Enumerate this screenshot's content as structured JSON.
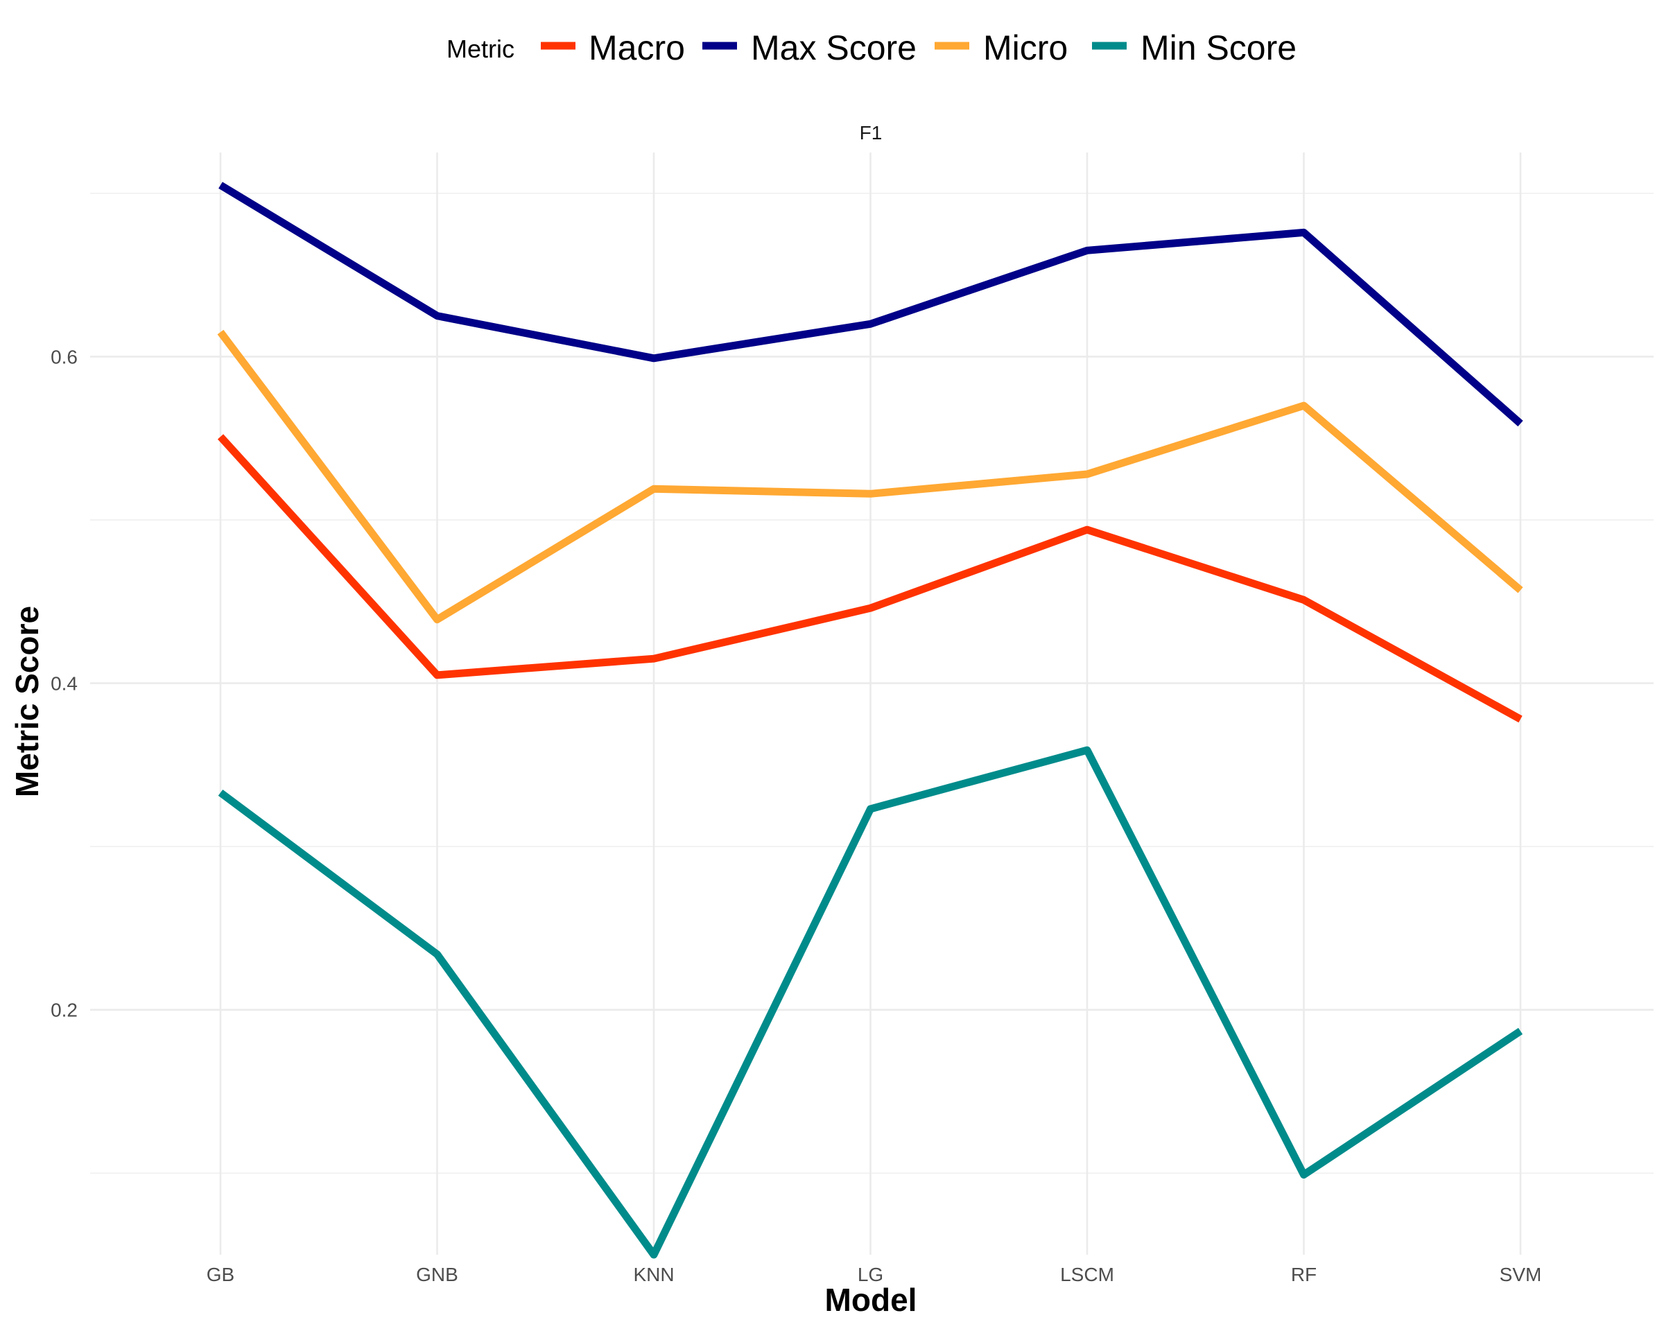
{
  "chart_data": {
    "type": "line",
    "facet": "F1",
    "xlabel": "Model",
    "ylabel": "Metric Score",
    "categories": [
      "GB",
      "GNB",
      "KNN",
      "LG",
      "LSCM",
      "RF",
      "SVM"
    ],
    "ylim": [
      0.05,
      0.725
    ],
    "yticks": [
      0.2,
      0.4,
      0.6
    ],
    "ytick_labels": [
      "0.2",
      "0.4",
      "0.6"
    ],
    "grid": true,
    "legend_title": "Metric",
    "legend_position": "top",
    "series": [
      {
        "name": "Macro",
        "color": "#FF3300",
        "values": [
          0.551,
          0.405,
          0.415,
          0.446,
          0.494,
          0.451,
          0.378
        ]
      },
      {
        "name": "Max Score",
        "color": "#000088",
        "values": [
          0.705,
          0.625,
          0.599,
          0.62,
          0.665,
          0.676,
          0.559
        ]
      },
      {
        "name": "Micro",
        "color": "#FFA833",
        "values": [
          0.615,
          0.439,
          0.519,
          0.516,
          0.528,
          0.57,
          0.457
        ]
      },
      {
        "name": "Min Score",
        "color": "#008B8B",
        "values": [
          0.333,
          0.234,
          0.05,
          0.323,
          0.359,
          0.099,
          0.187
        ]
      }
    ]
  }
}
